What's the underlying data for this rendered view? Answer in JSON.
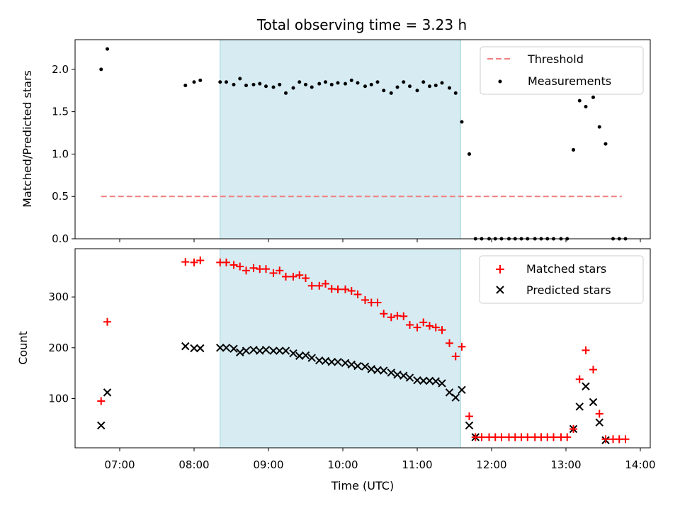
{
  "chart_data": [
    {
      "type": "scatter",
      "title": "Total observing time = 3.23 h",
      "xlabel": "",
      "ylabel": "Matched/Predicted stars",
      "xlim": [
        "06:24",
        "14:08"
      ],
      "ylim": [
        0,
        2.35
      ],
      "yticks": [
        0.0,
        0.5,
        1.0,
        1.5,
        2.0
      ],
      "ytick_labels": [
        "0.0",
        "0.5",
        "1.0",
        "1.5",
        "2.0"
      ],
      "grid": false,
      "legend": "top-right",
      "shaded_span": [
        "08:21",
        "11:35"
      ],
      "threshold": {
        "name": "Threshold",
        "y": 0.5,
        "x_range": [
          "06:45",
          "13:45"
        ],
        "color": "#f08080"
      },
      "series": [
        {
          "name": "Measurements",
          "marker": "dot",
          "color": "#000000",
          "points": [
            [
              "06:45",
              2.0
            ],
            [
              "06:50",
              2.24
            ],
            [
              "07:53",
              1.81
            ],
            [
              "08:00",
              1.85
            ],
            [
              "08:05",
              1.87
            ],
            [
              "08:21",
              1.85
            ],
            [
              "08:26",
              1.85
            ],
            [
              "08:32",
              1.82
            ],
            [
              "08:37",
              1.89
            ],
            [
              "08:42",
              1.81
            ],
            [
              "08:48",
              1.82
            ],
            [
              "08:53",
              1.83
            ],
            [
              "08:58",
              1.8
            ],
            [
              "09:04",
              1.79
            ],
            [
              "09:09",
              1.82
            ],
            [
              "09:14",
              1.72
            ],
            [
              "09:20",
              1.78
            ],
            [
              "09:25",
              1.85
            ],
            [
              "09:30",
              1.82
            ],
            [
              "09:35",
              1.79
            ],
            [
              "09:41",
              1.83
            ],
            [
              "09:46",
              1.85
            ],
            [
              "09:51",
              1.82
            ],
            [
              "09:56",
              1.84
            ],
            [
              "10:02",
              1.83
            ],
            [
              "10:07",
              1.87
            ],
            [
              "10:12",
              1.84
            ],
            [
              "10:18",
              1.8
            ],
            [
              "10:23",
              1.82
            ],
            [
              "10:28",
              1.85
            ],
            [
              "10:33",
              1.75
            ],
            [
              "10:39",
              1.72
            ],
            [
              "10:44",
              1.79
            ],
            [
              "10:49",
              1.85
            ],
            [
              "10:54",
              1.8
            ],
            [
              "11:00",
              1.75
            ],
            [
              "11:05",
              1.85
            ],
            [
              "11:10",
              1.8
            ],
            [
              "11:15",
              1.81
            ],
            [
              "11:20",
              1.84
            ],
            [
              "11:26",
              1.78
            ],
            [
              "11:31",
              1.72
            ],
            [
              "11:36",
              1.38
            ],
            [
              "11:42",
              1.0
            ],
            [
              "11:47",
              0
            ],
            [
              "11:52",
              0
            ],
            [
              "11:58",
              0
            ],
            [
              "12:03",
              0
            ],
            [
              "12:08",
              0
            ],
            [
              "12:14",
              0
            ],
            [
              "12:19",
              0
            ],
            [
              "12:24",
              0
            ],
            [
              "12:29",
              0
            ],
            [
              "12:35",
              0
            ],
            [
              "12:40",
              0
            ],
            [
              "12:45",
              0
            ],
            [
              "12:50",
              0
            ],
            [
              "12:56",
              0
            ],
            [
              "13:01",
              0
            ],
            [
              "13:06",
              1.05
            ],
            [
              "13:11",
              1.63
            ],
            [
              "13:16",
              1.56
            ],
            [
              "13:22",
              1.67
            ],
            [
              "13:27",
              1.32
            ],
            [
              "13:32",
              1.12
            ],
            [
              "13:38",
              0
            ],
            [
              "13:43",
              0
            ],
            [
              "13:48",
              0
            ]
          ]
        }
      ]
    },
    {
      "type": "scatter",
      "title": "",
      "xlabel": "Time (UTC)",
      "ylabel": "Count",
      "xlim": [
        "06:24",
        "14:08"
      ],
      "ylim": [
        3,
        395
      ],
      "xticks": [
        "07:00",
        "08:00",
        "09:00",
        "10:00",
        "11:00",
        "12:00",
        "13:00",
        "14:00"
      ],
      "xtick_labels": [
        "07:00",
        "08:00",
        "09:00",
        "10:00",
        "11:00",
        "12:00",
        "13:00",
        "14:00"
      ],
      "yticks": [
        100,
        200,
        300
      ],
      "ytick_labels": [
        "100",
        "200",
        "300"
      ],
      "grid": false,
      "legend": "top-right",
      "shaded_span": [
        "08:21",
        "11:35"
      ],
      "series": [
        {
          "name": "Matched stars",
          "marker": "plus",
          "color": "#ff0000",
          "points": [
            [
              "06:45",
              95
            ],
            [
              "06:50",
              251
            ],
            [
              "07:53",
              369
            ],
            [
              "08:00",
              368
            ],
            [
              "08:05",
              372
            ],
            [
              "08:21",
              368
            ],
            [
              "08:26",
              368
            ],
            [
              "08:32",
              363
            ],
            [
              "08:37",
              360
            ],
            [
              "08:42",
              352
            ],
            [
              "08:48",
              357
            ],
            [
              "08:53",
              355
            ],
            [
              "08:58",
              355
            ],
            [
              "09:04",
              347
            ],
            [
              "09:09",
              352
            ],
            [
              "09:14",
              340
            ],
            [
              "09:20",
              340
            ],
            [
              "09:25",
              343
            ],
            [
              "09:30",
              337
            ],
            [
              "09:35",
              322
            ],
            [
              "09:41",
              322
            ],
            [
              "09:46",
              326
            ],
            [
              "09:51",
              316
            ],
            [
              "09:56",
              315
            ],
            [
              "10:02",
              315
            ],
            [
              "10:07",
              312
            ],
            [
              "10:12",
              305
            ],
            [
              "10:18",
              294
            ],
            [
              "10:23",
              289
            ],
            [
              "10:28",
              289
            ],
            [
              "10:33",
              267
            ],
            [
              "10:39",
              260
            ],
            [
              "10:44",
              263
            ],
            [
              "10:49",
              262
            ],
            [
              "10:54",
              245
            ],
            [
              "11:00",
              240
            ],
            [
              "11:05",
              250
            ],
            [
              "11:10",
              243
            ],
            [
              "11:15",
              240
            ],
            [
              "11:20",
              235
            ],
            [
              "11:26",
              209
            ],
            [
              "11:31",
              183
            ],
            [
              "11:36",
              202
            ],
            [
              "11:42",
              65
            ],
            [
              "11:47",
              24
            ],
            [
              "11:52",
              24
            ],
            [
              "11:58",
              24
            ],
            [
              "12:03",
              24
            ],
            [
              "12:08",
              24
            ],
            [
              "12:14",
              24
            ],
            [
              "12:19",
              24
            ],
            [
              "12:24",
              24
            ],
            [
              "12:29",
              24
            ],
            [
              "12:35",
              24
            ],
            [
              "12:40",
              24
            ],
            [
              "12:45",
              24
            ],
            [
              "12:50",
              24
            ],
            [
              "12:56",
              24
            ],
            [
              "13:01",
              24
            ],
            [
              "13:06",
              40
            ],
            [
              "13:11",
              138
            ],
            [
              "13:16",
              195
            ],
            [
              "13:22",
              157
            ],
            [
              "13:27",
              70
            ],
            [
              "13:32",
              20
            ],
            [
              "13:38",
              20
            ],
            [
              "13:43",
              20
            ],
            [
              "13:48",
              20
            ]
          ]
        },
        {
          "name": "Predicted stars",
          "marker": "x",
          "color": "#000000",
          "points": [
            [
              "06:45",
              47
            ],
            [
              "06:50",
              112
            ],
            [
              "07:53",
              203
            ],
            [
              "08:00",
              199
            ],
            [
              "08:05",
              199
            ],
            [
              "08:21",
              200
            ],
            [
              "08:26",
              200
            ],
            [
              "08:32",
              198
            ],
            [
              "08:37",
              191
            ],
            [
              "08:42",
              194
            ],
            [
              "08:48",
              196
            ],
            [
              "08:53",
              194
            ],
            [
              "08:58",
              196
            ],
            [
              "09:04",
              194
            ],
            [
              "09:09",
              194
            ],
            [
              "09:14",
              194
            ],
            [
              "09:20",
              189
            ],
            [
              "09:25",
              184
            ],
            [
              "09:30",
              185
            ],
            [
              "09:35",
              180
            ],
            [
              "09:41",
              175
            ],
            [
              "09:46",
              174
            ],
            [
              "09:51",
              172
            ],
            [
              "09:56",
              172
            ],
            [
              "10:02",
              170
            ],
            [
              "10:07",
              167
            ],
            [
              "10:12",
              164
            ],
            [
              "10:18",
              163
            ],
            [
              "10:23",
              158
            ],
            [
              "10:28",
              156
            ],
            [
              "10:33",
              155
            ],
            [
              "10:39",
              151
            ],
            [
              "10:44",
              147
            ],
            [
              "10:49",
              145
            ],
            [
              "10:54",
              141
            ],
            [
              "11:00",
              136
            ],
            [
              "11:05",
              135
            ],
            [
              "11:10",
              135
            ],
            [
              "11:15",
              134
            ],
            [
              "11:20",
              130
            ],
            [
              "11:26",
              112
            ],
            [
              "11:31",
              102
            ],
            [
              "11:36",
              117
            ],
            [
              "11:42",
              47
            ],
            [
              "11:47",
              24
            ],
            [
              "13:06",
              40
            ],
            [
              "13:11",
              84
            ],
            [
              "13:16",
              124
            ],
            [
              "13:22",
              93
            ],
            [
              "13:27",
              53
            ],
            [
              "13:32",
              18
            ]
          ]
        }
      ]
    }
  ]
}
